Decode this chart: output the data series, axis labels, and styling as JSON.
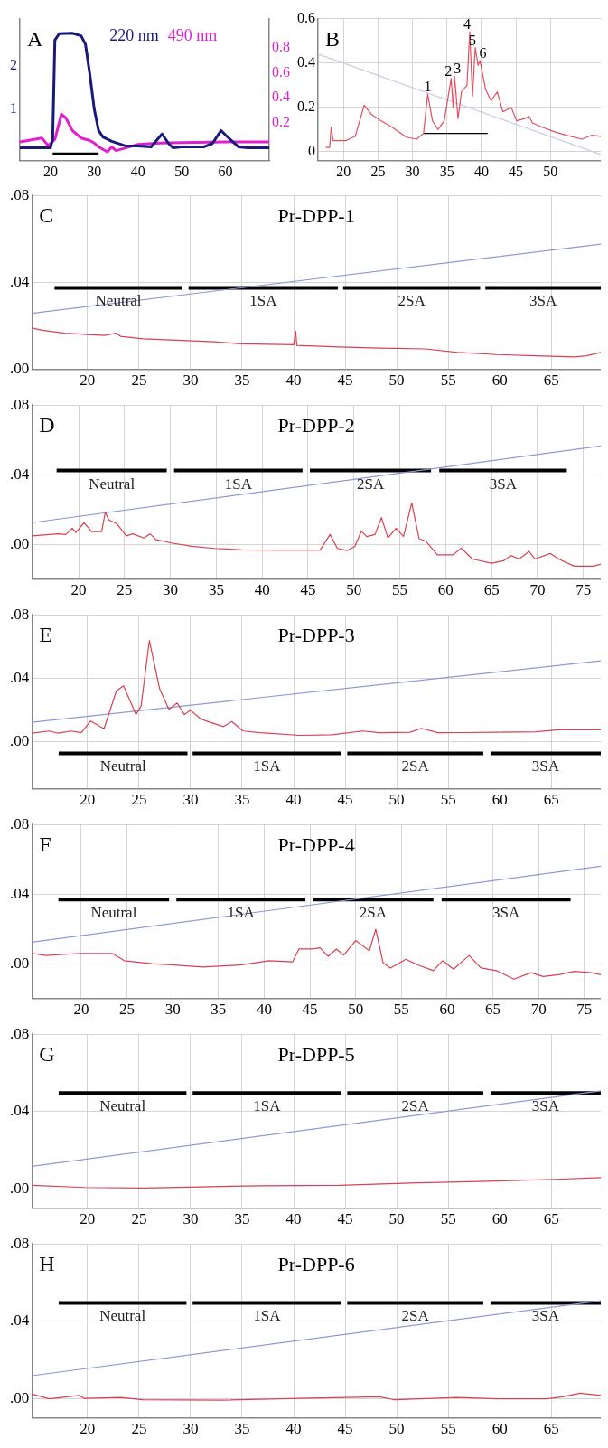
{
  "chart_data": [
    {
      "type": "line",
      "annotations": [
        "A"
      ],
      "legend": "top right",
      "grid": false,
      "marker": "none",
      "xlim": [
        13,
        70
      ],
      "xticks": [
        20,
        30,
        40,
        50,
        60
      ],
      "ylim": [
        -0.2,
        3.1
      ],
      "yticks": [
        1,
        2
      ],
      "y2lim": [
        -0.1,
        1.03
      ],
      "y2ticks": [
        0.2,
        0.4,
        0.6,
        0.8
      ],
      "series": [
        {
          "name": "220 nm",
          "color": "#1a1a7a",
          "x": [
            13,
            20,
            20.5,
            21,
            22,
            25,
            27,
            28,
            29,
            30,
            31,
            32,
            34,
            37,
            40,
            43,
            45.5,
            47,
            48,
            50,
            55,
            57,
            59,
            61,
            63,
            65,
            70
          ],
          "values": [
            0.1,
            0.1,
            0.3,
            2.6,
            2.75,
            2.76,
            2.7,
            2.5,
            1.8,
            1.0,
            0.5,
            0.35,
            0.25,
            0.15,
            0.14,
            0.12,
            0.42,
            0.2,
            0.1,
            0.12,
            0.12,
            0.2,
            0.5,
            0.3,
            0.12,
            0.1,
            0.1
          ]
        },
        {
          "name": "490 nm",
          "color": "#e020d0",
          "axis": "y2",
          "x": [
            13,
            18,
            19.5,
            21,
            22.5,
            23.5,
            25,
            27,
            29,
            30,
            31,
            33,
            34,
            35,
            37,
            40,
            45,
            50,
            60,
            70
          ],
          "values": [
            0.05,
            0.08,
            0.02,
            0.07,
            0.27,
            0.24,
            0.14,
            0.08,
            0.06,
            0.04,
            0.01,
            -0.03,
            0.01,
            -0.02,
            0,
            0.03,
            0.04,
            0.045,
            0.05,
            0.05
          ]
        },
        {
          "color": "#000000",
          "x": [
            20.5,
            31
          ],
          "values": [
            -0.04,
            -0.04
          ]
        }
      ]
    },
    {
      "type": "line",
      "annotations": [
        "B",
        {
          "text": "1",
          "x": 32.2,
          "y": 0.26
        },
        {
          "text": "2",
          "x": 35.6,
          "y": 0.33
        },
        {
          "text": "3",
          "x": 36.1,
          "y": 0.34
        },
        {
          "text": "4",
          "x": 38.3,
          "y": 0.54
        },
        {
          "text": "5",
          "x": 39.1,
          "y": 0.47
        },
        {
          "text": "6",
          "x": 39.8,
          "y": 0.41
        }
      ],
      "grid": true,
      "marker": "none",
      "xlim": [
        16.3,
        57.3
      ],
      "xticks": [
        20,
        25,
        30,
        35,
        40,
        45,
        50
      ],
      "ylim": [
        -0.04,
        0.6
      ],
      "yticks": [
        0.0,
        0.2,
        0.4,
        0.6
      ],
      "series": [
        {
          "color": "#e05060",
          "x": [
            17.4,
            18,
            18.2,
            18.5,
            20.3,
            21.7,
            23,
            24,
            25.4,
            27.1,
            29.1,
            30.6,
            31.6,
            32.2,
            32.9,
            33.7,
            34.6,
            35.6,
            35.9,
            36.1,
            36.6,
            37.1,
            37.9,
            38.3,
            38.7,
            39.1,
            39.5,
            39.8,
            40.6,
            41.4,
            42.3,
            43.1,
            44.3,
            45.1,
            46.3,
            46.9,
            47.4,
            48.9,
            50.6,
            52.3,
            54.6,
            56,
            57.3
          ],
          "values": [
            0.02,
            0.02,
            0.11,
            0.05,
            0.05,
            0.07,
            0.21,
            0.17,
            0.14,
            0.11,
            0.066,
            0.057,
            0.083,
            0.26,
            0.14,
            0.1,
            0.14,
            0.33,
            0.2,
            0.34,
            0.15,
            0.27,
            0.3,
            0.54,
            0.25,
            0.47,
            0.39,
            0.41,
            0.28,
            0.23,
            0.27,
            0.18,
            0.2,
            0.14,
            0.15,
            0.16,
            0.13,
            0.11,
            0.09,
            0.075,
            0.057,
            0.075,
            0.07
          ]
        },
        {
          "color": "#c8cce0",
          "x": [
            16.3,
            57.3
          ],
          "values": [
            0.44,
            -0.012
          ]
        },
        {
          "color": "#000000",
          "x": [
            31.6,
            40.9
          ],
          "values": [
            0.083,
            0.083
          ]
        }
      ]
    },
    {
      "type": "line",
      "title": "Pr-DPP-1",
      "annotations": [
        "C"
      ],
      "grid": true,
      "marker": "none",
      "xlim": [
        14.6,
        69.8
      ],
      "xticks": [
        20,
        25,
        30,
        35,
        40,
        45,
        50,
        55,
        60,
        65
      ],
      "ylim": [
        0,
        0.08
      ],
      "yticks": [
        {
          "value": 0,
          "label": ".00"
        },
        {
          "value": 0.04,
          "label": ".04"
        },
        {
          "value": 0.08,
          "label": ".08"
        }
      ],
      "series": [
        {
          "color": "#d94050",
          "x": [
            14.6,
            15.6,
            17.8,
            21.6,
            22.8,
            23.2,
            25.4,
            29.2,
            32.3,
            34.9,
            40,
            40.2,
            40.3,
            44.4,
            48.3,
            52.8,
            55.9,
            59.7,
            63.5,
            67.3,
            68.4,
            69.8
          ],
          "values": [
            0.019,
            0.018,
            0.0166,
            0.0156,
            0.0166,
            0.0152,
            0.014,
            0.0133,
            0.0127,
            0.0117,
            0.0113,
            0.0176,
            0.011,
            0.0103,
            0.0098,
            0.0094,
            0.0078,
            0.0068,
            0.0062,
            0.0057,
            0.0062,
            0.0078
          ]
        },
        {
          "color": "#9098d8",
          "x": [
            14.6,
            69.8
          ],
          "values": [
            0.0258,
            0.0576
          ]
        },
        {
          "name": "Neutral",
          "color": "#000000",
          "x": [
            16.8,
            29.2
          ],
          "values": [
            0.0375,
            0.0375
          ]
        },
        {
          "name": "1SA",
          "color": "#000000",
          "x": [
            29.8,
            44.3
          ],
          "values": [
            0.0375,
            0.0375
          ]
        },
        {
          "name": "2SA",
          "color": "#000000",
          "x": [
            44.8,
            58.1
          ],
          "values": [
            0.0375,
            0.0375
          ]
        },
        {
          "name": "3SA",
          "color": "#000000",
          "x": [
            58.6,
            69.8
          ],
          "values": [
            0.0375,
            0.0375
          ]
        }
      ]
    },
    {
      "type": "line",
      "title": "Pr-DPP-2",
      "annotations": [
        "D"
      ],
      "grid": true,
      "marker": "none",
      "xlim": [
        14.9,
        76.9
      ],
      "xticks": [
        20,
        25,
        30,
        35,
        40,
        45,
        50,
        55,
        60,
        65,
        70,
        75
      ],
      "ylim": [
        -0.02,
        0.08
      ],
      "yticks": [
        {
          "value": 0,
          "label": ".00"
        },
        {
          "value": 0.04,
          "label": ".04"
        },
        {
          "value": 0.08,
          "label": ".08"
        }
      ],
      "series": [
        {
          "color": "#d94050",
          "x": [
            14.9,
            17.8,
            18.6,
            19.3,
            19.7,
            20.6,
            21.4,
            22.5,
            22.9,
            23.3,
            24.2,
            25.2,
            25.9,
            27.1,
            27.8,
            28.4,
            30.1,
            32.3,
            34.8,
            37.8,
            42,
            46.3,
            47.4,
            48.2,
            49.3,
            50.1,
            50.8,
            51.4,
            52.3,
            53,
            53.7,
            54.6,
            55.4,
            56.3,
            57.1,
            57.8,
            59.1,
            60.8,
            61.7,
            62.9,
            65,
            66.3,
            67.1,
            68,
            69.1,
            69.7,
            71.4,
            72.3,
            74,
            76.1,
            76.9
          ],
          "values": [
            0.0048,
            0.006,
            0.0056,
            0.0092,
            0.0068,
            0.0124,
            0.0073,
            0.0073,
            0.0182,
            0.014,
            0.0116,
            0.0048,
            0.006,
            0.0036,
            0.006,
            0.0027,
            0.0007,
            -0.0012,
            -0.0024,
            -0.0032,
            -0.0034,
            -0.0034,
            0.0056,
            -0.0024,
            -0.0036,
            -0.0012,
            0.0075,
            0.0044,
            0.0056,
            0.0153,
            0.0036,
            0.0092,
            0.0044,
            0.0238,
            0.0032,
            0.0019,
            -0.0061,
            -0.0061,
            -0.0022,
            -0.0085,
            -0.0109,
            -0.0095,
            -0.0065,
            -0.0085,
            -0.0041,
            -0.0085,
            -0.0053,
            -0.0085,
            -0.0126,
            -0.0126,
            -0.0114
          ]
        },
        {
          "color": "#9098d8",
          "x": [
            14.9,
            76.9
          ],
          "values": [
            0.0124,
            0.0565
          ]
        },
        {
          "name": "Neutral",
          "color": "#000000",
          "x": [
            17.6,
            29.6
          ],
          "values": [
            0.0424,
            0.0424
          ]
        },
        {
          "name": "1SA",
          "color": "#000000",
          "x": [
            30.4,
            44.4
          ],
          "values": [
            0.0424,
            0.0424
          ]
        },
        {
          "name": "2SA",
          "color": "#000000",
          "x": [
            45.2,
            58.4
          ],
          "values": [
            0.0424,
            0.0424
          ]
        },
        {
          "name": "3SA",
          "color": "#000000",
          "x": [
            59.3,
            73.2
          ],
          "values": [
            0.0424,
            0.0424
          ]
        }
      ]
    },
    {
      "type": "line",
      "title": "Pr-DPP-3",
      "annotations": [
        "E"
      ],
      "grid": true,
      "marker": "none",
      "xlim": [
        14.6,
        69.8
      ],
      "xticks": [
        20,
        25,
        30,
        35,
        40,
        45,
        50,
        55,
        60,
        65
      ],
      "ylim": [
        -0.03,
        0.08
      ],
      "yticks": [
        {
          "value": 0,
          "label": ".00"
        },
        {
          "value": 0.04,
          "label": ".04"
        },
        {
          "value": 0.08,
          "label": ".08"
        }
      ],
      "series": [
        {
          "color": "#d94050",
          "x": [
            14.6,
            16.3,
            17.1,
            18.4,
            19.4,
            20.3,
            21.6,
            22.8,
            23.5,
            24.7,
            25.2,
            26,
            27,
            27.9,
            28.7,
            29.4,
            30,
            31,
            31.9,
            33.2,
            34,
            35.1,
            36.8,
            40.6,
            43.7,
            46.7,
            48.3,
            51.3,
            52.4,
            54,
            59.7,
            63.5,
            65.7,
            69.8
          ],
          "values": [
            0.0052,
            0.0065,
            0.0052,
            0.0065,
            0.0054,
            0.0128,
            0.0079,
            0.0318,
            0.0351,
            0.0169,
            0.0223,
            0.0637,
            0.0332,
            0.0201,
            0.0242,
            0.0169,
            0.0196,
            0.0141,
            0.012,
            0.0093,
            0.0125,
            0.0065,
            0.0054,
            0.0038,
            0.0041,
            0.0065,
            0.0054,
            0.0057,
            0.0082,
            0.0054,
            0.0057,
            0.006,
            0.0073,
            0.0073
          ]
        },
        {
          "color": "#9098d8",
          "x": [
            14.6,
            69.8
          ],
          "values": [
            0.012,
            0.0509
          ]
        },
        {
          "name": "Neutral",
          "color": "#000000",
          "x": [
            17.2,
            29.7
          ],
          "values": [
            -0.0076,
            -0.0076
          ]
        },
        {
          "name": "1SA",
          "color": "#000000",
          "x": [
            30.2,
            44.6
          ],
          "values": [
            -0.0076,
            -0.0076
          ]
        },
        {
          "name": "2SA",
          "color": "#000000",
          "x": [
            45.2,
            58.4
          ],
          "values": [
            -0.0076,
            -0.0076
          ]
        },
        {
          "name": "3SA",
          "color": "#000000",
          "x": [
            59.1,
            69.8
          ],
          "values": [
            -0.0076,
            -0.0076
          ]
        }
      ]
    },
    {
      "type": "line",
      "title": "Pr-DPP-4",
      "annotations": [
        "F"
      ],
      "grid": true,
      "marker": "none",
      "xlim": [
        14.6,
        76.8
      ],
      "xticks": [
        20,
        25,
        30,
        35,
        40,
        45,
        50,
        55,
        60,
        65,
        70,
        75
      ],
      "ylim": [
        -0.02,
        0.08
      ],
      "yticks": [
        {
          "value": 0,
          "label": ".00"
        },
        {
          "value": 0.04,
          "label": ".04"
        },
        {
          "value": 0.08,
          "label": ".08"
        }
      ],
      "series": [
        {
          "color": "#d94050",
          "x": [
            14.6,
            16.1,
            20,
            23.4,
            24.7,
            27.7,
            29.8,
            33.3,
            37.6,
            40.5,
            43.1,
            43.8,
            45.3,
            46.1,
            47,
            47.9,
            48.7,
            50,
            51.5,
            52.2,
            53,
            53.8,
            55.5,
            56.8,
            58.5,
            59.5,
            60.7,
            62.4,
            63.7,
            65.4,
            67.3,
            69.2,
            70.5,
            72.2,
            73.9,
            75.8,
            76.8
          ],
          "values": [
            0.0059,
            0.0047,
            0.0059,
            0.0059,
            0.0017,
            0,
            -0.0007,
            -0.002,
            -0.0007,
            0.0017,
            0.001,
            0.0084,
            0.0084,
            0.0091,
            0.0042,
            0.0084,
            0.0049,
            0.0133,
            0.0074,
            0.0198,
            0.0005,
            -0.0025,
            0.0025,
            -0.0007,
            -0.004,
            0.0017,
            -0.0032,
            0.0047,
            -0.0025,
            -0.004,
            -0.0089,
            -0.0052,
            -0.0074,
            -0.0064,
            -0.0044,
            -0.0052,
            -0.0064
          ]
        },
        {
          "color": "#9098d8",
          "x": [
            14.6,
            76.8
          ],
          "values": [
            0.0123,
            0.056
          ]
        },
        {
          "name": "Neutral",
          "color": "#000000",
          "x": [
            17.5,
            29.6
          ],
          "values": [
            0.0368,
            0.0368
          ]
        },
        {
          "name": "1SA",
          "color": "#000000",
          "x": [
            30.4,
            44.5
          ],
          "values": [
            0.0368,
            0.0368
          ]
        },
        {
          "name": "2SA",
          "color": "#000000",
          "x": [
            45.3,
            58.5
          ],
          "values": [
            0.0368,
            0.0368
          ]
        },
        {
          "name": "3SA",
          "color": "#000000",
          "x": [
            59.4,
            73.5
          ],
          "values": [
            0.0368,
            0.0368
          ]
        }
      ]
    },
    {
      "type": "line",
      "title": "Pr-DPP-5",
      "annotations": [
        "G"
      ],
      "grid": true,
      "marker": "none",
      "xlim": [
        14.6,
        69.8
      ],
      "xticks": [
        20,
        25,
        30,
        35,
        40,
        45,
        50,
        55,
        60,
        65
      ],
      "ylim": [
        -0.01,
        0.08
      ],
      "yticks": [
        {
          "value": 0,
          "label": ".00"
        },
        {
          "value": 0.04,
          "label": ".04"
        },
        {
          "value": 0.08,
          "label": ".08"
        }
      ],
      "series": [
        {
          "color": "#d94050",
          "x": [
            14.6,
            19.7,
            25.4,
            30,
            36.8,
            44.4,
            52,
            59.7,
            65.4,
            69.8
          ],
          "values": [
            0.0018,
            0.0007,
            0.0004,
            0.0009,
            0.0016,
            0.0018,
            0.0031,
            0.004,
            0.0049,
            0.0058
          ]
        },
        {
          "color": "#9098d8",
          "x": [
            14.6,
            69.8
          ],
          "values": [
            0.0116,
            0.0507
          ]
        },
        {
          "name": "Neutral",
          "color": "#000000",
          "x": [
            17.2,
            29.6
          ],
          "values": [
            0.0496,
            0.0496
          ]
        },
        {
          "name": "1SA",
          "color": "#000000",
          "x": [
            30.2,
            44.6
          ],
          "values": [
            0.0496,
            0.0496
          ]
        },
        {
          "name": "2SA",
          "color": "#000000",
          "x": [
            45.2,
            58.4
          ],
          "values": [
            0.0496,
            0.0496
          ]
        },
        {
          "name": "3SA",
          "color": "#000000",
          "x": [
            59.1,
            69.8
          ],
          "values": [
            0.0496,
            0.0496
          ]
        }
      ]
    },
    {
      "type": "line",
      "title": "Pr-DPP-6",
      "annotations": [
        "H"
      ],
      "grid": true,
      "marker": "none",
      "xlim": [
        14.6,
        69.8
      ],
      "xticks": [
        20,
        25,
        30,
        35,
        40,
        45,
        50,
        55,
        60,
        65
      ],
      "ylim": [
        -0.01,
        0.08
      ],
      "yticks": [
        {
          "value": 0,
          "label": ".00"
        },
        {
          "value": 0.04,
          "label": ".04"
        },
        {
          "value": 0.08,
          "label": ".08"
        }
      ],
      "series": [
        {
          "color": "#d94050",
          "x": [
            14.6,
            16.3,
            19.2,
            19.7,
            23.2,
            25.4,
            33,
            40.6,
            48.3,
            49.8,
            55.9,
            59.7,
            64.6,
            66.1,
            67.8,
            69.8
          ],
          "values": [
            0.0023,
            -0.0002,
            0.0016,
            0,
            0.0005,
            -0.0007,
            -0.0009,
            0,
            0.0009,
            -0.0007,
            0.0005,
            -0.0002,
            -0.0002,
            0.0009,
            0.0027,
            0.0016
          ]
        },
        {
          "color": "#9098d8",
          "x": [
            14.6,
            69.8
          ],
          "values": [
            0.0118,
            0.0506
          ]
        },
        {
          "name": "Neutral",
          "color": "#000000",
          "x": [
            17.2,
            29.6
          ],
          "values": [
            0.0495,
            0.0495
          ]
        },
        {
          "name": "1SA",
          "color": "#000000",
          "x": [
            30.2,
            44.6
          ],
          "values": [
            0.0495,
            0.0495
          ]
        },
        {
          "name": "2SA",
          "color": "#000000",
          "x": [
            45.2,
            58.4
          ],
          "values": [
            0.0495,
            0.0495
          ]
        },
        {
          "name": "3SA",
          "color": "#000000",
          "x": [
            59.1,
            69.8
          ],
          "values": [
            0.0495,
            0.0495
          ]
        }
      ]
    }
  ]
}
